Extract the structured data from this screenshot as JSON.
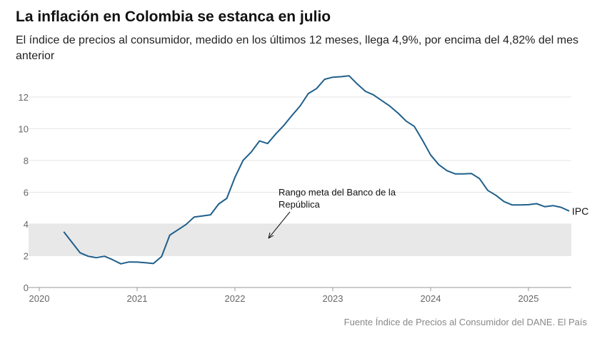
{
  "title": "La inflación en Colombia se estanca en julio",
  "subtitle": "El índice de precios al consumidor, medido en los últimos 12 meses, llega 4,9%, por encima del 4,82% del mes anterior",
  "source": "Fuente Índice de Precios al Consumidor del DANE. El País",
  "chart_data": {
    "type": "line",
    "title": "La inflación en Colombia se estanca en julio",
    "xlim": [
      2020,
      2025.5
    ],
    "ylim": [
      0,
      13.5
    ],
    "x_ticks": [
      "2020",
      "2021",
      "2022",
      "2023",
      "2024",
      "2025"
    ],
    "y_ticks": [
      0,
      2,
      4,
      6,
      8,
      10,
      12
    ],
    "grid": true,
    "line_color": "#1f5f8b",
    "band": {
      "range": [
        2,
        4
      ],
      "color": "#e8e8e8",
      "annotation": "Rango meta del Banco de la República"
    },
    "series": [
      {
        "name": "IPC",
        "start": "2020-04",
        "values": [
          3.51,
          2.85,
          2.19,
          1.97,
          1.88,
          1.97,
          1.75,
          1.49,
          1.61,
          1.6,
          1.56,
          1.51,
          1.95,
          3.3,
          3.63,
          3.97,
          4.44,
          4.51,
          4.58,
          5.26,
          5.62,
          6.94,
          8.01,
          8.53,
          9.23,
          9.07,
          9.67,
          10.21,
          10.84,
          11.44,
          12.22,
          12.53,
          13.12,
          13.25,
          13.28,
          13.34,
          12.82,
          12.36,
          12.13,
          11.78,
          11.43,
          10.99,
          10.48,
          10.15,
          9.28,
          8.35,
          7.74,
          7.36,
          7.16,
          7.16,
          7.18,
          6.86,
          6.12,
          5.81,
          5.41,
          5.2,
          5.2,
          5.22,
          5.28,
          5.09,
          5.16,
          5.05,
          4.82
        ]
      }
    ]
  }
}
